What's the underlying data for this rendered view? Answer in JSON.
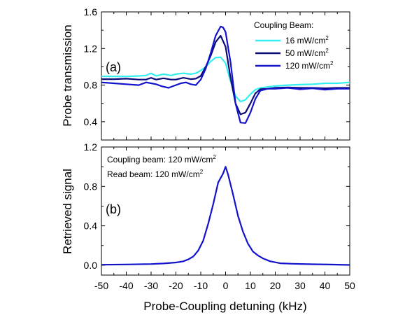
{
  "chart_data": [
    {
      "type": "line",
      "panel_label": "(a)",
      "xlabel": "Probe-Coupling detuning (kHz)",
      "ylabel": "Probe transmission",
      "xlim": [
        -50,
        50
      ],
      "ylim": [
        0.2,
        1.6
      ],
      "yticks": [
        "0.4",
        "0.8",
        "1.2",
        "1.6"
      ],
      "legend": {
        "title": "Coupling Beam:",
        "position": "top-right"
      },
      "series": [
        {
          "name": "16 mW/cm",
          "name_sup": "2",
          "color": "#33f0ef",
          "points": [
            [
              -50,
              0.895
            ],
            [
              -45,
              0.895
            ],
            [
              -40,
              0.895
            ],
            [
              -35,
              0.9
            ],
            [
              -32,
              0.905
            ],
            [
              -30,
              0.93
            ],
            [
              -28,
              0.9
            ],
            [
              -25,
              0.92
            ],
            [
              -22,
              0.905
            ],
            [
              -20,
              0.92
            ],
            [
              -17,
              0.93
            ],
            [
              -14,
              0.92
            ],
            [
              -12,
              0.93
            ],
            [
              -10,
              0.96
            ],
            [
              -8,
              1.0
            ],
            [
              -6,
              1.06
            ],
            [
              -4,
              1.1
            ],
            [
              -2,
              1.105
            ],
            [
              0,
              1.04
            ],
            [
              2,
              0.84
            ],
            [
              4,
              0.68
            ],
            [
              6,
              0.62
            ],
            [
              8,
              0.64
            ],
            [
              10,
              0.7
            ],
            [
              12,
              0.75
            ],
            [
              14,
              0.77
            ],
            [
              17,
              0.78
            ],
            [
              20,
              0.79
            ],
            [
              25,
              0.8
            ],
            [
              30,
              0.805
            ],
            [
              35,
              0.81
            ],
            [
              40,
              0.82
            ],
            [
              45,
              0.82
            ],
            [
              50,
              0.83
            ]
          ]
        },
        {
          "name": "50 mW/cm",
          "name_sup": "2",
          "color": "#0a0a78",
          "points": [
            [
              -50,
              0.865
            ],
            [
              -45,
              0.865
            ],
            [
              -40,
              0.87
            ],
            [
              -35,
              0.86
            ],
            [
              -32,
              0.86
            ],
            [
              -30,
              0.88
            ],
            [
              -28,
              0.86
            ],
            [
              -25,
              0.875
            ],
            [
              -22,
              0.86
            ],
            [
              -20,
              0.86
            ],
            [
              -17,
              0.88
            ],
            [
              -14,
              0.865
            ],
            [
              -12,
              0.87
            ],
            [
              -10,
              0.9
            ],
            [
              -8,
              1.0
            ],
            [
              -6,
              1.12
            ],
            [
              -4,
              1.27
            ],
            [
              -2,
              1.34
            ],
            [
              0,
              1.22
            ],
            [
              2,
              0.88
            ],
            [
              4,
              0.6
            ],
            [
              6,
              0.48
            ],
            [
              8,
              0.5
            ],
            [
              10,
              0.6
            ],
            [
              12,
              0.71
            ],
            [
              14,
              0.755
            ],
            [
              17,
              0.76
            ],
            [
              20,
              0.77
            ],
            [
              25,
              0.775
            ],
            [
              30,
              0.77
            ],
            [
              35,
              0.77
            ],
            [
              40,
              0.765
            ],
            [
              45,
              0.77
            ],
            [
              50,
              0.77
            ]
          ]
        },
        {
          "name": "120 mW/cm",
          "name_sup": "2",
          "color": "#1212cc",
          "points": [
            [
              -50,
              0.83
            ],
            [
              -45,
              0.82
            ],
            [
              -40,
              0.81
            ],
            [
              -35,
              0.8
            ],
            [
              -32,
              0.83
            ],
            [
              -30,
              0.82
            ],
            [
              -28,
              0.81
            ],
            [
              -26,
              0.79
            ],
            [
              -23,
              0.77
            ],
            [
              -21,
              0.79
            ],
            [
              -18,
              0.82
            ],
            [
              -16,
              0.83
            ],
            [
              -14,
              0.81
            ],
            [
              -12,
              0.8
            ],
            [
              -10,
              0.86
            ],
            [
              -8,
              0.98
            ],
            [
              -6,
              1.15
            ],
            [
              -4,
              1.34
            ],
            [
              -2,
              1.44
            ],
            [
              -1,
              1.43
            ],
            [
              0,
              1.38
            ],
            [
              2,
              1.05
            ],
            [
              4,
              0.6
            ],
            [
              6,
              0.39
            ],
            [
              8,
              0.385
            ],
            [
              10,
              0.5
            ],
            [
              12,
              0.65
            ],
            [
              14,
              0.74
            ],
            [
              17,
              0.76
            ],
            [
              20,
              0.76
            ],
            [
              25,
              0.77
            ],
            [
              30,
              0.755
            ],
            [
              35,
              0.765
            ],
            [
              40,
              0.75
            ],
            [
              45,
              0.76
            ],
            [
              50,
              0.76
            ]
          ]
        }
      ]
    },
    {
      "type": "line",
      "panel_label": "(b)",
      "xlabel": "Probe-Coupling detuning (kHz)",
      "ylabel": "Retrieved signal",
      "xlim": [
        -50,
        50
      ],
      "ylim": [
        -0.1,
        1.2
      ],
      "yticks": [
        "0.0",
        "0.4",
        "0.8",
        "1.2"
      ],
      "xticks": [
        "-50",
        "-40",
        "-30",
        "-20",
        "-10",
        "0",
        "10",
        "20",
        "30",
        "40",
        "50"
      ],
      "annotations": [
        {
          "text": "Coupling beam: 120 mW/cm",
          "sup": "2"
        },
        {
          "text": "Read beam: 120 mW/cm",
          "sup": "2"
        }
      ],
      "series": [
        {
          "color": "#1212cc",
          "points": [
            [
              -50,
              0.005
            ],
            [
              -40,
              0.008
            ],
            [
              -30,
              0.012
            ],
            [
              -25,
              0.018
            ],
            [
              -20,
              0.028
            ],
            [
              -17,
              0.04
            ],
            [
              -15,
              0.06
            ],
            [
              -13,
              0.09
            ],
            [
              -11,
              0.15
            ],
            [
              -9,
              0.25
            ],
            [
              -7,
              0.42
            ],
            [
              -5,
              0.62
            ],
            [
              -3,
              0.84
            ],
            [
              -1,
              0.93
            ],
            [
              0,
              1.0
            ],
            [
              1,
              0.92
            ],
            [
              3,
              0.72
            ],
            [
              5,
              0.5
            ],
            [
              7,
              0.34
            ],
            [
              9,
              0.22
            ],
            [
              11,
              0.14
            ],
            [
              13,
              0.1
            ],
            [
              15,
              0.07
            ],
            [
              18,
              0.04
            ],
            [
              22,
              0.02
            ],
            [
              27,
              0.015
            ],
            [
              35,
              0.01
            ],
            [
              42,
              0.007
            ],
            [
              50,
              0.003
            ]
          ]
        }
      ]
    }
  ]
}
